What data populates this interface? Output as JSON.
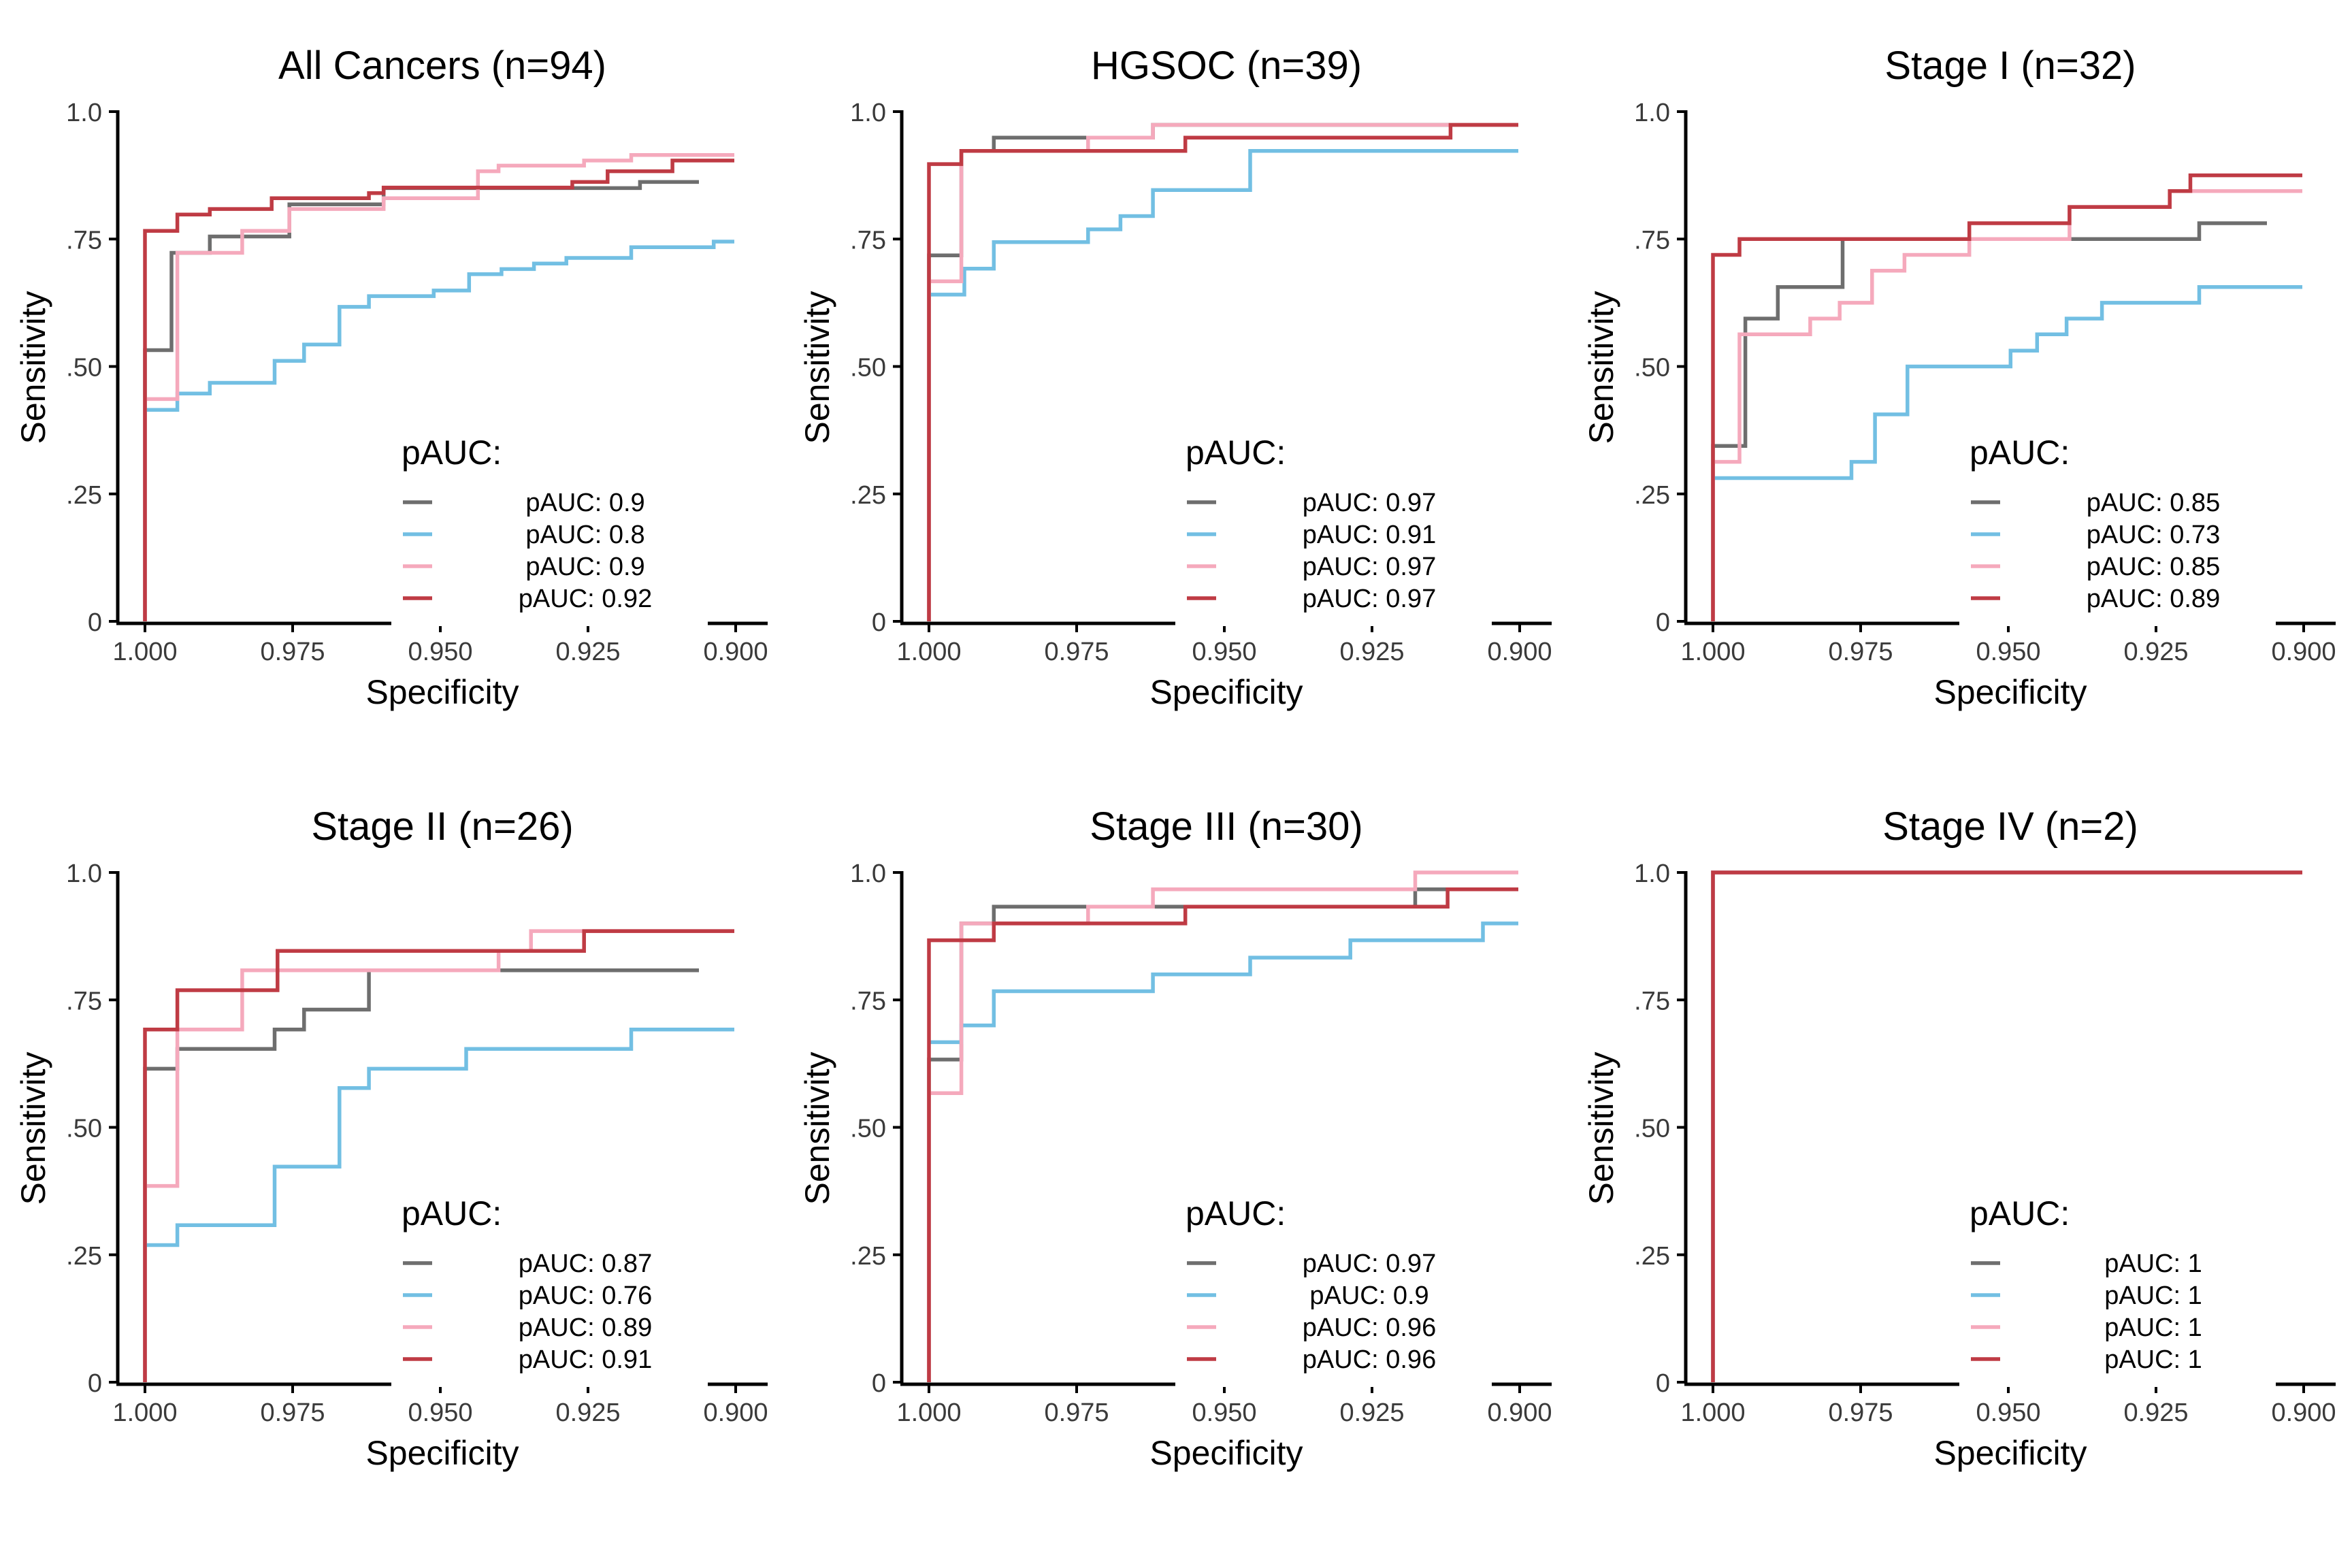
{
  "colors": {
    "grey": "#6e6e6e",
    "blue": "#72bfe3",
    "pink": "#f5a9bc",
    "red": "#bf3b44",
    "axis": "#000000",
    "text": "#000000"
  },
  "chart_data": [
    {
      "type": "line",
      "title": "All Cancers (n=94)",
      "xlabel": "Specificity",
      "ylabel": "Sensitivity",
      "xlim": [
        1.0,
        0.9
      ],
      "ylim": [
        0,
        1
      ],
      "x_ticks": [
        "1.000",
        "0.975",
        "0.950",
        "0.925",
        "0.900"
      ],
      "y_ticks": [
        "0",
        ".25",
        ".50",
        ".75",
        "1.0"
      ],
      "legend_title": "pAUC:",
      "series": [
        {
          "name": "pAUC: 0.9",
          "color": "grey",
          "x": [
            1.0,
            1.0,
            0.9955,
            0.9955,
            0.989,
            0.989,
            0.9755,
            0.9755,
            0.9595,
            0.9595,
            0.9255,
            0.9255,
            0.916,
            0.916,
            0.906
          ],
          "y": [
            0,
            0.532,
            0.532,
            0.723,
            0.723,
            0.755,
            0.755,
            0.818,
            0.818,
            0.85,
            0.85,
            0.85,
            0.85,
            0.862,
            0.862
          ]
        },
        {
          "name": "pAUC: 0.8",
          "color": "blue",
          "x": [
            1.0,
            1.0,
            0.9945,
            0.9945,
            0.989,
            0.989,
            0.978,
            0.978,
            0.973,
            0.973,
            0.967,
            0.967,
            0.962,
            0.962,
            0.9565,
            0.9565,
            0.951,
            0.951,
            0.945,
            0.945,
            0.9395,
            0.9395,
            0.934,
            0.934,
            0.9285,
            0.9285,
            0.9175,
            0.9175,
            0.9035,
            0.9035,
            0.9
          ],
          "y": [
            0.415,
            0.415,
            0.415,
            0.447,
            0.447,
            0.468,
            0.468,
            0.511,
            0.511,
            0.543,
            0.543,
            0.617,
            0.617,
            0.638,
            0.638,
            0.638,
            0.638,
            0.649,
            0.649,
            0.681,
            0.681,
            0.691,
            0.691,
            0.702,
            0.702,
            0.713,
            0.713,
            0.734,
            0.734,
            0.745,
            0.745
          ]
        },
        {
          "name": "pAUC: 0.9",
          "color": "pink",
          "x": [
            1.0,
            1.0,
            0.9945,
            0.9945,
            0.9835,
            0.9835,
            0.9755,
            0.9755,
            0.9595,
            0.9595,
            0.9435,
            0.9435,
            0.94,
            0.94,
            0.9255,
            0.9255,
            0.9175,
            0.9175,
            0.9
          ],
          "y": [
            0,
            0.436,
            0.436,
            0.723,
            0.723,
            0.766,
            0.766,
            0.809,
            0.809,
            0.83,
            0.83,
            0.883,
            0.883,
            0.894,
            0.894,
            0.904,
            0.904,
            0.915,
            0.915
          ]
        },
        {
          "name": "pAUC: 0.92",
          "color": "red",
          "x": [
            1.0,
            1.0,
            0.9945,
            0.9945,
            0.989,
            0.989,
            0.9785,
            0.9785,
            0.962,
            0.962,
            0.9595,
            0.9595,
            0.9275,
            0.9275,
            0.9215,
            0.9215,
            0.9105,
            0.9105,
            0.9
          ],
          "y": [
            0,
            0.766,
            0.766,
            0.798,
            0.798,
            0.809,
            0.809,
            0.83,
            0.83,
            0.84,
            0.84,
            0.851,
            0.851,
            0.862,
            0.862,
            0.883,
            0.883,
            0.904,
            0.904
          ]
        }
      ]
    },
    {
      "type": "line",
      "title": "HGSOC (n=39)",
      "xlabel": "Specificity",
      "ylabel": "Sensitivity",
      "xlim": [
        1.0,
        0.9
      ],
      "ylim": [
        0,
        1
      ],
      "x_ticks": [
        "1.000",
        "0.975",
        "0.950",
        "0.925",
        "0.900"
      ],
      "y_ticks": [
        "0",
        ".25",
        ".50",
        ".75",
        "1.0"
      ],
      "legend_title": "pAUC:",
      "series": [
        {
          "name": "pAUC: 0.97",
          "color": "grey",
          "x": [
            1.0,
            1.0,
            0.9945,
            0.9945,
            0.989,
            0.989,
            0.973,
            0.973,
            0.962,
            0.962,
            0.9
          ],
          "y": [
            0,
            0.718,
            0.718,
            0.923,
            0.923,
            0.949,
            0.949,
            0.949,
            0.949,
            0.974,
            0.974
          ]
        },
        {
          "name": "pAUC: 0.91",
          "color": "blue",
          "x": [
            1.0,
            1.0,
            0.994,
            0.994,
            0.989,
            0.989,
            0.973,
            0.973,
            0.9675,
            0.9675,
            0.962,
            0.962,
            0.9565,
            0.9565,
            0.9455,
            0.9455,
            0.9
          ],
          "y": [
            0.641,
            0.641,
            0.641,
            0.692,
            0.692,
            0.744,
            0.744,
            0.769,
            0.769,
            0.795,
            0.795,
            0.846,
            0.846,
            0.846,
            0.846,
            0.923,
            0.923
          ]
        },
        {
          "name": "pAUC: 0.97",
          "color": "pink",
          "x": [
            1.0,
            1.0,
            0.9945,
            0.9945,
            0.973,
            0.973,
            0.962,
            0.962,
            0.9
          ],
          "y": [
            0,
            0.667,
            0.667,
            0.923,
            0.923,
            0.949,
            0.949,
            0.974,
            0.974
          ]
        },
        {
          "name": "pAUC: 0.97",
          "color": "red",
          "x": [
            1.0,
            1.0,
            0.9945,
            0.9945,
            0.9565,
            0.9565,
            0.9115,
            0.9115,
            0.9
          ],
          "y": [
            0,
            0.897,
            0.897,
            0.923,
            0.923,
            0.949,
            0.949,
            0.974,
            0.974
          ]
        }
      ]
    },
    {
      "type": "line",
      "title": "Stage I (n=32)",
      "xlabel": "Specificity",
      "ylabel": "Sensitivity",
      "xlim": [
        1.0,
        0.9
      ],
      "ylim": [
        0,
        1
      ],
      "x_ticks": [
        "1.000",
        "0.975",
        "0.950",
        "0.925",
        "0.900"
      ],
      "y_ticks": [
        "0",
        ".25",
        ".50",
        ".75",
        "1.0"
      ],
      "legend_title": "pAUC:",
      "series": [
        {
          "name": "pAUC: 0.85",
          "color": "grey",
          "x": [
            1.0,
            1.0,
            0.9945,
            0.9945,
            0.989,
            0.989,
            0.978,
            0.978,
            0.9175,
            0.9175,
            0.906
          ],
          "y": [
            0,
            0.344,
            0.344,
            0.594,
            0.594,
            0.656,
            0.656,
            0.75,
            0.75,
            0.781,
            0.781
          ]
        },
        {
          "name": "pAUC: 0.73",
          "color": "blue",
          "x": [
            1.0,
            1.0,
            0.9765,
            0.9765,
            0.9725,
            0.9725,
            0.967,
            0.967,
            0.9495,
            0.9495,
            0.945,
            0.945,
            0.94,
            0.94,
            0.934,
            0.934,
            0.9175,
            0.9175,
            0.9
          ],
          "y": [
            0.281,
            0.281,
            0.281,
            0.313,
            0.313,
            0.406,
            0.406,
            0.5,
            0.5,
            0.531,
            0.531,
            0.563,
            0.563,
            0.594,
            0.594,
            0.625,
            0.625,
            0.656,
            0.656
          ]
        },
        {
          "name": "pAUC: 0.85",
          "color": "pink",
          "x": [
            1.0,
            1.0,
            0.9955,
            0.9955,
            0.9835,
            0.9835,
            0.9785,
            0.9785,
            0.973,
            0.973,
            0.9675,
            0.9675,
            0.9565,
            0.9565,
            0.9395,
            0.9395,
            0.9225,
            0.9225,
            0.9
          ],
          "y": [
            0,
            0.313,
            0.313,
            0.563,
            0.563,
            0.594,
            0.594,
            0.625,
            0.625,
            0.688,
            0.688,
            0.719,
            0.719,
            0.75,
            0.75,
            0.813,
            0.813,
            0.844,
            0.844
          ]
        },
        {
          "name": "pAUC: 0.89",
          "color": "red",
          "x": [
            1.0,
            1.0,
            0.9955,
            0.9955,
            0.9565,
            0.9565,
            0.9395,
            0.9395,
            0.9225,
            0.9225,
            0.919,
            0.919,
            0.9
          ],
          "y": [
            0,
            0.719,
            0.719,
            0.75,
            0.75,
            0.781,
            0.781,
            0.813,
            0.813,
            0.844,
            0.844,
            0.875,
            0.875
          ]
        }
      ]
    },
    {
      "type": "line",
      "title": "Stage II (n=26)",
      "xlabel": "Specificity",
      "ylabel": "Sensitivity",
      "xlim": [
        1.0,
        0.9
      ],
      "ylim": [
        0,
        1
      ],
      "x_ticks": [
        "1.000",
        "0.975",
        "0.950",
        "0.925",
        "0.900"
      ],
      "y_ticks": [
        "0",
        ".25",
        ".50",
        ".75",
        "1.0"
      ],
      "legend_title": "pAUC:",
      "series": [
        {
          "name": "pAUC: 0.87",
          "color": "grey",
          "x": [
            1.0,
            1.0,
            0.9945,
            0.9945,
            0.978,
            0.978,
            0.973,
            0.973,
            0.967,
            0.967,
            0.962,
            0.962,
            0.9395,
            0.9395,
            0.906
          ],
          "y": [
            0,
            0.615,
            0.615,
            0.654,
            0.654,
            0.692,
            0.692,
            0.731,
            0.731,
            0.731,
            0.731,
            0.808,
            0.808,
            0.808,
            0.808
          ]
        },
        {
          "name": "pAUC: 0.76",
          "color": "blue",
          "x": [
            1.0,
            1.0,
            0.9945,
            0.9945,
            0.978,
            0.978,
            0.967,
            0.967,
            0.962,
            0.962,
            0.9565,
            0.9565,
            0.9455,
            0.9455,
            0.9175,
            0.9175,
            0.9
          ],
          "y": [
            0.269,
            0.269,
            0.269,
            0.308,
            0.308,
            0.423,
            0.423,
            0.577,
            0.577,
            0.615,
            0.615,
            0.615,
            0.615,
            0.654,
            0.654,
            0.692,
            0.692
          ]
        },
        {
          "name": "pAUC: 0.89",
          "color": "pink",
          "x": [
            1.0,
            1.0,
            0.9945,
            0.9945,
            0.9835,
            0.9835,
            0.978,
            0.978,
            0.94,
            0.94,
            0.9345,
            0.9345,
            0.9
          ],
          "y": [
            0,
            0.385,
            0.385,
            0.692,
            0.692,
            0.808,
            0.808,
            0.808,
            0.808,
            0.846,
            0.846,
            0.885,
            0.885
          ]
        },
        {
          "name": "pAUC: 0.91",
          "color": "red",
          "x": [
            1.0,
            1.0,
            0.9945,
            0.9945,
            0.9835,
            0.9835,
            0.9775,
            0.9775,
            0.9255,
            0.9255,
            0.9
          ],
          "y": [
            0,
            0.692,
            0.692,
            0.769,
            0.769,
            0.769,
            0.769,
            0.846,
            0.846,
            0.885,
            0.885
          ]
        }
      ]
    },
    {
      "type": "line",
      "title": "Stage III (n=30)",
      "xlabel": "Specificity",
      "ylabel": "Sensitivity",
      "xlim": [
        1.0,
        0.9
      ],
      "ylim": [
        0,
        1
      ],
      "x_ticks": [
        "1.000",
        "0.975",
        "0.950",
        "0.925",
        "0.900"
      ],
      "y_ticks": [
        "0",
        ".25",
        ".50",
        ".75",
        "1.0"
      ],
      "legend_title": "pAUC:",
      "series": [
        {
          "name": "pAUC: 0.97",
          "color": "grey",
          "x": [
            1.0,
            1.0,
            0.9945,
            0.9945,
            0.989,
            0.989,
            0.962,
            0.962,
            0.9175,
            0.9175,
            0.9
          ],
          "y": [
            0,
            0.633,
            0.633,
            0.9,
            0.9,
            0.933,
            0.933,
            0.933,
            0.933,
            0.967,
            0.967
          ]
        },
        {
          "name": "pAUC: 0.9",
          "color": "blue",
          "x": [
            1.0,
            1.0,
            0.9945,
            0.9945,
            0.989,
            0.989,
            0.962,
            0.962,
            0.9455,
            0.9455,
            0.9285,
            0.9285,
            0.906,
            0.906,
            0.9
          ],
          "y": [
            0.667,
            0.667,
            0.667,
            0.7,
            0.7,
            0.767,
            0.767,
            0.8,
            0.8,
            0.833,
            0.833,
            0.867,
            0.867,
            0.9,
            0.9
          ]
        },
        {
          "name": "pAUC: 0.96",
          "color": "pink",
          "x": [
            1.0,
            1.0,
            0.9945,
            0.9945,
            0.989,
            0.989,
            0.973,
            0.973,
            0.962,
            0.962,
            0.9175,
            0.9175,
            0.9
          ],
          "y": [
            0,
            0.567,
            0.567,
            0.9,
            0.9,
            0.9,
            0.9,
            0.933,
            0.933,
            0.967,
            0.967,
            1.0,
            1.0
          ]
        },
        {
          "name": "pAUC: 0.96",
          "color": "red",
          "x": [
            1.0,
            1.0,
            0.9945,
            0.9945,
            0.989,
            0.989,
            0.9565,
            0.9565,
            0.912,
            0.912,
            0.9
          ],
          "y": [
            0,
            0.867,
            0.867,
            0.867,
            0.867,
            0.9,
            0.9,
            0.933,
            0.933,
            0.967,
            0.967
          ]
        }
      ]
    },
    {
      "type": "line",
      "title": "Stage IV (n=2)",
      "xlabel": "Specificity",
      "ylabel": "Sensitivity",
      "xlim": [
        1.0,
        0.9
      ],
      "ylim": [
        0,
        1
      ],
      "x_ticks": [
        "1.000",
        "0.975",
        "0.950",
        "0.925",
        "0.900"
      ],
      "y_ticks": [
        "0",
        ".25",
        ".50",
        ".75",
        "1.0"
      ],
      "legend_title": "pAUC:",
      "series": [
        {
          "name": "pAUC: 1",
          "color": "grey",
          "x": [
            1.0,
            1.0,
            0.9
          ],
          "y": [
            0,
            1.0,
            1.0
          ]
        },
        {
          "name": "pAUC: 1",
          "color": "blue",
          "x": [
            1.0,
            1.0,
            0.9
          ],
          "y": [
            0,
            1.0,
            1.0
          ]
        },
        {
          "name": "pAUC: 1",
          "color": "pink",
          "x": [
            1.0,
            1.0,
            0.9
          ],
          "y": [
            0,
            1.0,
            1.0
          ]
        },
        {
          "name": "pAUC: 1",
          "color": "red",
          "x": [
            1.0,
            1.0,
            0.9
          ],
          "y": [
            0,
            1.0,
            1.0
          ]
        }
      ]
    }
  ]
}
